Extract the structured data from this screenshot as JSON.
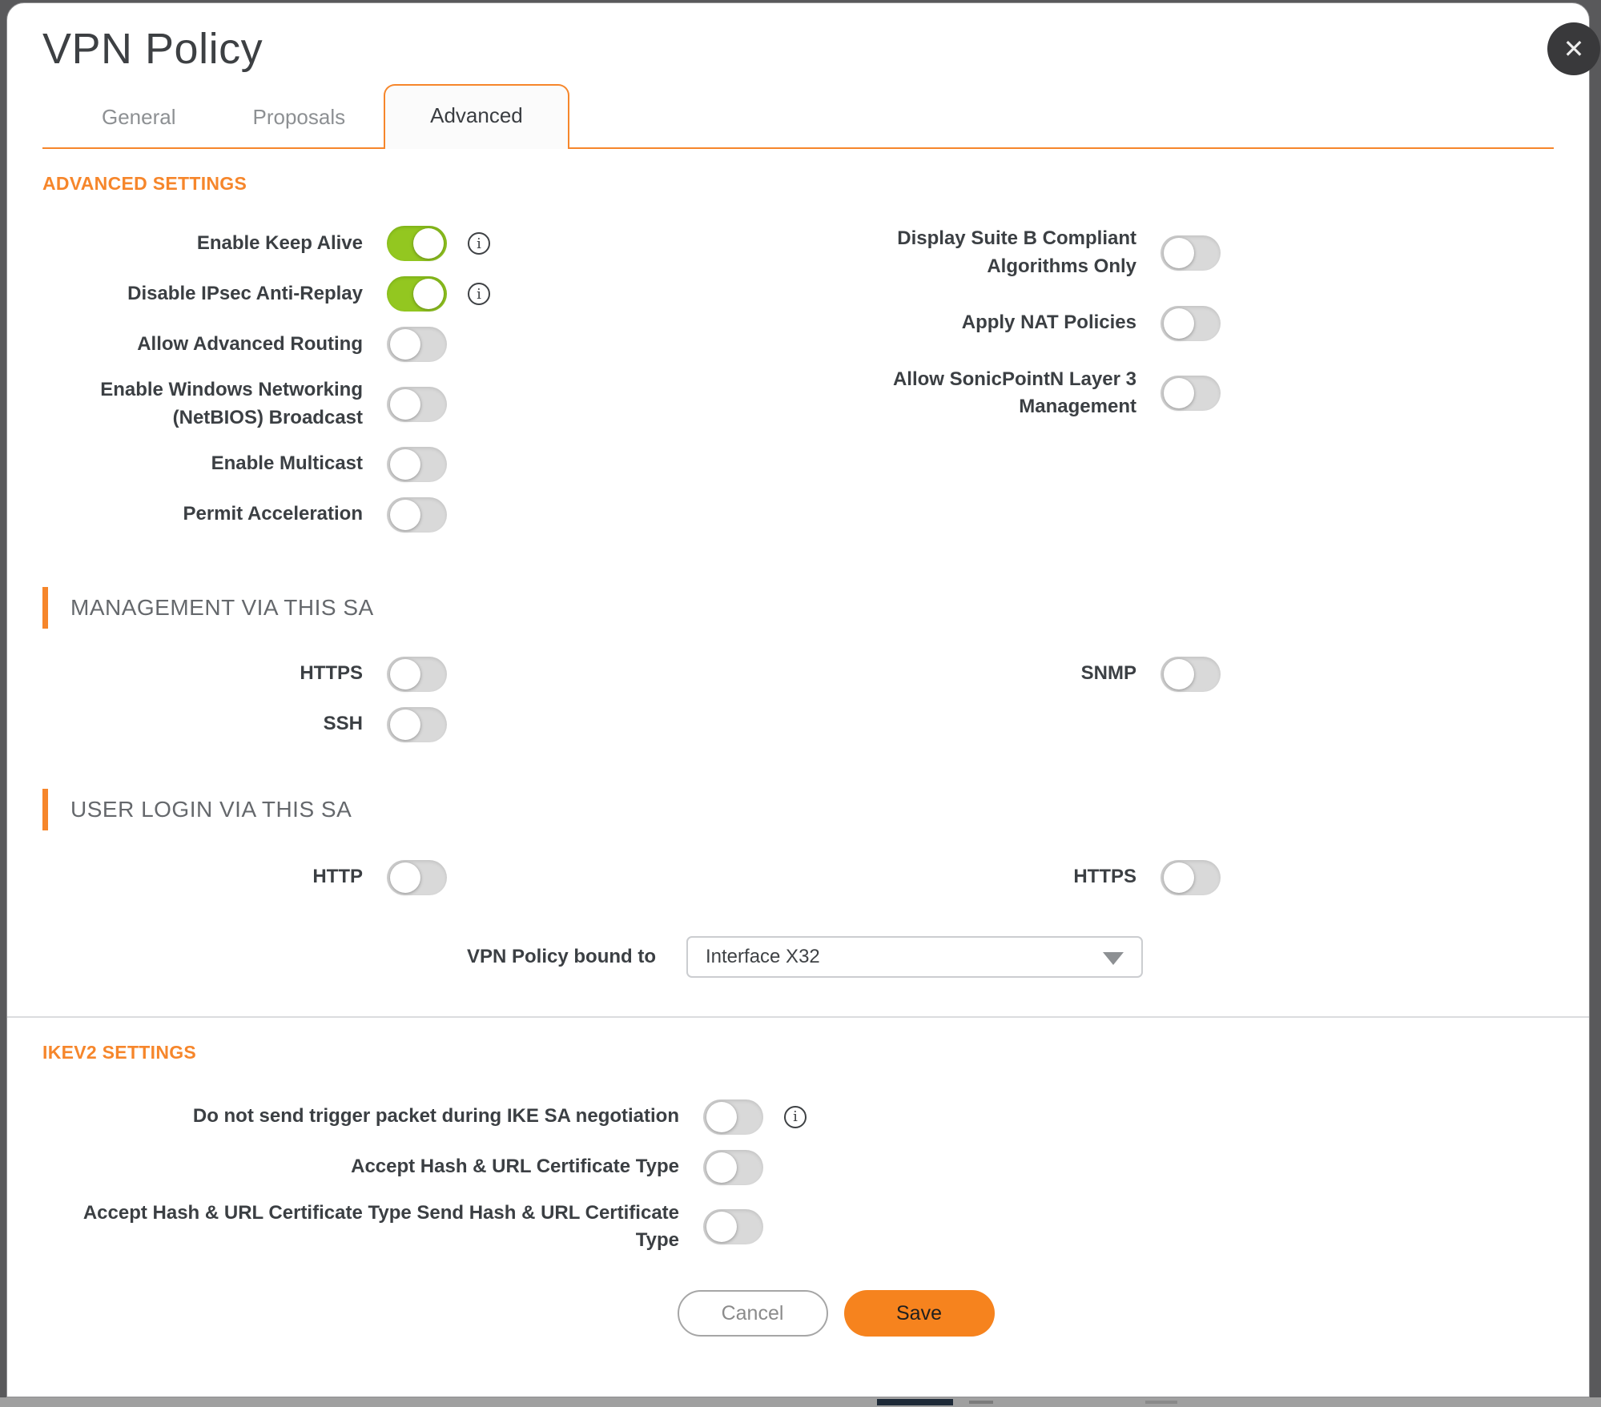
{
  "dialog": {
    "title": "VPN Policy",
    "close_glyph": "✕"
  },
  "tabs": [
    {
      "label": "General",
      "active": false
    },
    {
      "label": "Proposals",
      "active": false
    },
    {
      "label": "Advanced",
      "active": true
    }
  ],
  "sections": {
    "advanced": {
      "heading": "ADVANCED SETTINGS",
      "left_toggles": [
        {
          "label": "Enable Keep Alive",
          "state": "on",
          "info": true
        },
        {
          "label": "Disable IPsec Anti-Replay",
          "state": "on",
          "info": true
        },
        {
          "label": "Allow Advanced Routing",
          "state": "off"
        },
        {
          "label": "Enable Windows Networking (NetBIOS) Broadcast",
          "state": "off"
        },
        {
          "label": "Enable Multicast",
          "state": "off"
        },
        {
          "label": "Permit Acceleration",
          "state": "off"
        }
      ],
      "right_toggles": [
        {
          "label": "Display Suite B Compliant Algorithms Only",
          "state": "off"
        },
        {
          "label": "Apply NAT Policies",
          "state": "off"
        },
        {
          "label": "Allow SonicPointN Layer 3 Management",
          "state": "off"
        }
      ]
    },
    "management": {
      "heading": "MANAGEMENT VIA THIS SA",
      "left_toggles": [
        {
          "label": "HTTPS",
          "state": "off"
        },
        {
          "label": "SSH",
          "state": "off"
        }
      ],
      "right_toggles": [
        {
          "label": "SNMP",
          "state": "off"
        }
      ]
    },
    "user_login": {
      "heading": "USER LOGIN VIA THIS SA",
      "left_toggles": [
        {
          "label": "HTTP",
          "state": "off"
        }
      ],
      "right_toggles": [
        {
          "label": "HTTPS",
          "state": "off"
        }
      ],
      "bound_to": {
        "label": "VPN Policy bound to",
        "value": "Interface X32"
      }
    },
    "ikev2": {
      "heading": "IKEV2 SETTINGS",
      "toggles": [
        {
          "label": "Do not send trigger packet during IKE SA negotiation",
          "state": "off",
          "info": true
        },
        {
          "label": "Accept Hash & URL Certificate Type",
          "state": "off"
        },
        {
          "label": "Accept Hash & URL Certificate Type Send Hash & URL Certificate Type",
          "state": "off"
        }
      ]
    }
  },
  "footer": {
    "cancel_label": "Cancel",
    "save_label": "Save"
  },
  "icons": {
    "info_glyph": "i"
  },
  "colors": {
    "accent_orange": "#f6862b",
    "save_orange": "#f6831e",
    "toggle_on_green": "#93c720"
  }
}
